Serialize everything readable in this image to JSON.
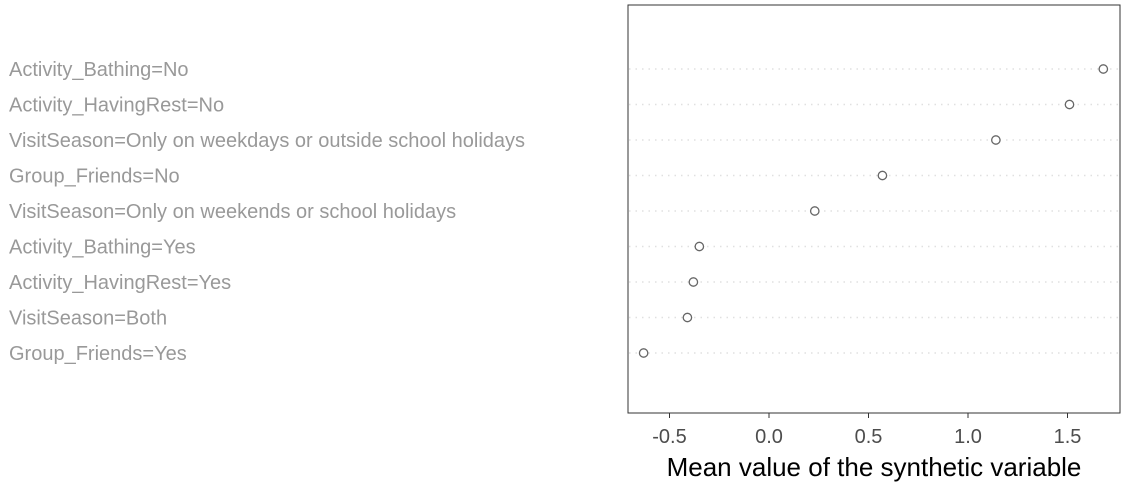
{
  "chart_data": {
    "type": "scatter",
    "title": "",
    "subtitle": "",
    "xlabel": "Mean value of the synthetic variable",
    "ylabel": "",
    "xlim": [
      -0.7,
      1.75
    ],
    "xticks": [
      -0.5,
      0.0,
      0.5,
      1.0,
      1.5
    ],
    "xtick_labels": [
      "-0.5",
      "0.0",
      "0.5",
      "1.0",
      "1.5"
    ],
    "grid": "horizontal dotted lines per category",
    "legend": "none",
    "categories": [
      "Activity_Bathing=No",
      "Activity_HavingRest=No",
      "VisitSeason=Only on weekdays or outside school holidays",
      "Group_Friends=No",
      "VisitSeason=Only on weekends or school holidays",
      "Activity_Bathing=Yes",
      "Activity_HavingRest=Yes",
      "VisitSeason=Both",
      "Group_Friends=Yes"
    ],
    "values": [
      1.68,
      1.51,
      1.14,
      0.57,
      0.23,
      -0.35,
      -0.38,
      -0.41,
      -0.63
    ]
  },
  "colors": {
    "label_text": "#999999",
    "tick_text": "#4d4d4d",
    "axis_title": "#000000",
    "frame": "#333333",
    "grid": "#e0e0e0",
    "point_stroke": "#666666"
  }
}
